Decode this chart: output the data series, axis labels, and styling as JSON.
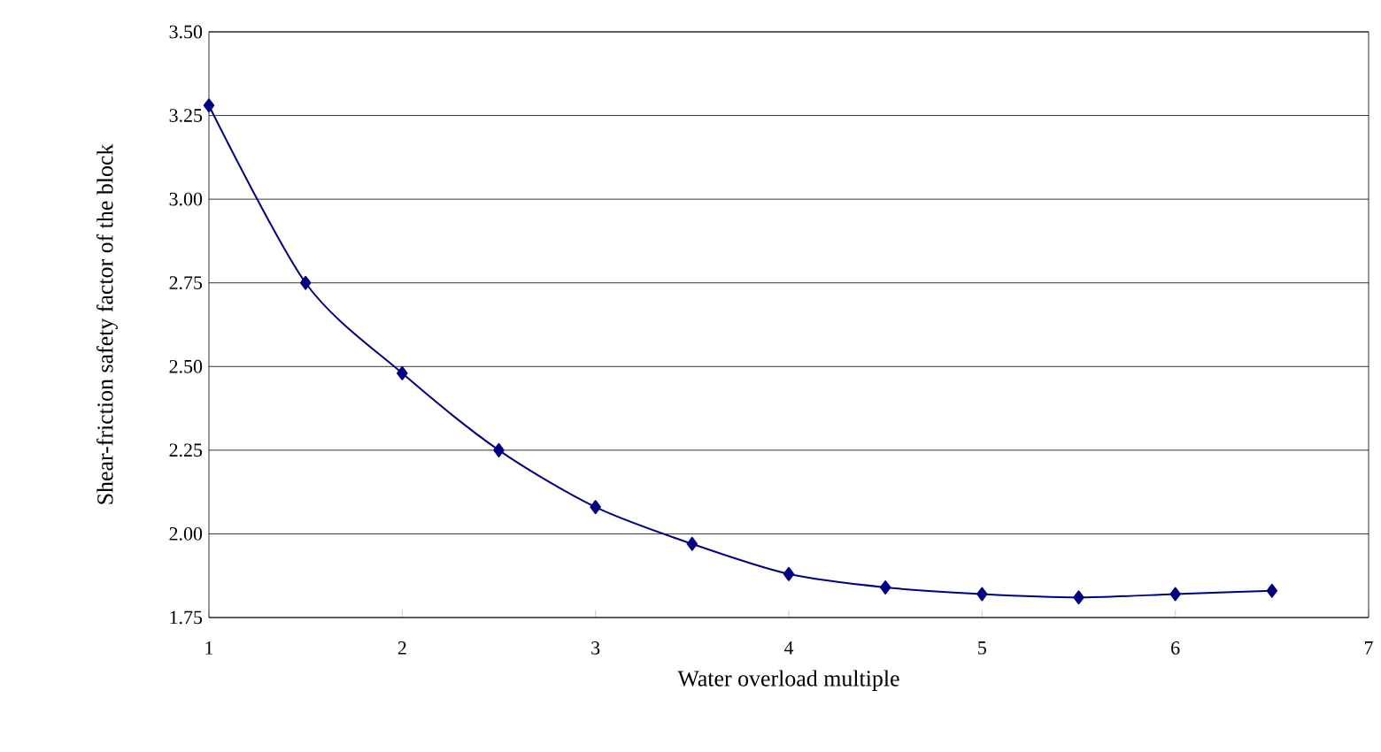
{
  "chart_data": {
    "type": "line",
    "xlabel": "Water overload multiple",
    "ylabel": "Shear-friction safety factor of the block",
    "x": [
      1,
      1.5,
      2,
      2.5,
      3,
      3.5,
      4,
      4.5,
      5,
      5.5,
      6,
      6.5
    ],
    "series": [
      {
        "color": "#000080",
        "values": [
          3.28,
          2.75,
          2.48,
          2.25,
          2.08,
          1.97,
          1.88,
          1.84,
          1.82,
          1.81,
          1.82,
          1.83
        ]
      }
    ],
    "xlim": [
      1,
      7
    ],
    "xticks": [
      1,
      2,
      3,
      4,
      5,
      6,
      7
    ],
    "ylim": [
      1.75,
      3.5
    ],
    "yticks": [
      {
        "value": 1.75,
        "label": "1.75"
      },
      {
        "value": 2,
        "label": "2.00"
      },
      {
        "value": 2.25,
        "label": "2.25"
      },
      {
        "value": 2.5,
        "label": "2.50"
      },
      {
        "value": 2.75,
        "label": "2.75"
      },
      {
        "value": 3,
        "label": "3.00"
      },
      {
        "value": 3.25,
        "label": "3.25"
      },
      {
        "value": 3.5,
        "label": "3.50"
      }
    ],
    "grid": "y",
    "marker": "diamond",
    "line_style": "solid"
  }
}
